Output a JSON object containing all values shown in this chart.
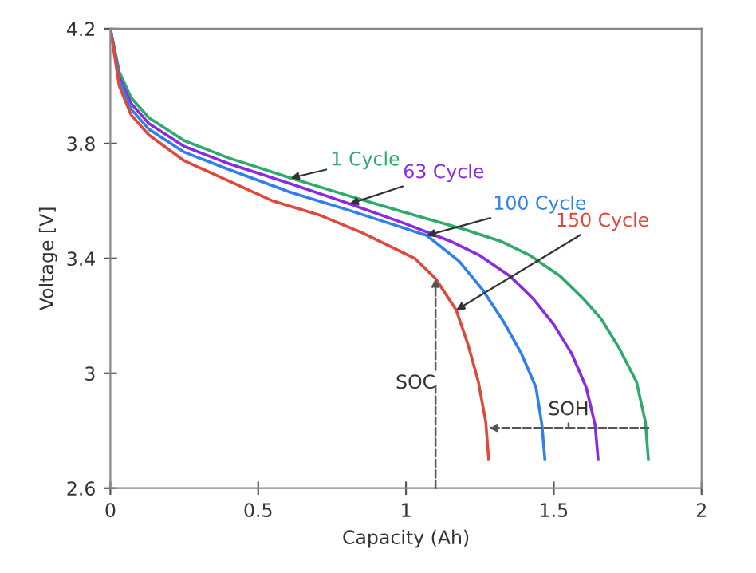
{
  "chart_data": {
    "type": "line",
    "xlabel": "Capacity (Ah)",
    "ylabel": "Voltage [V]",
    "xlim": [
      0,
      2
    ],
    "xticks": [
      0,
      0.5,
      1,
      1.5,
      2
    ],
    "ylim": [
      2.6,
      4.2
    ],
    "yticks": [
      2.6,
      3,
      3.4,
      3.8,
      4.2
    ],
    "grid": false,
    "marker": "none",
    "line_style": "solid",
    "series": [
      {
        "name": "1 Cycle",
        "color": "#2eaa6a",
        "x": [
          0,
          0.03,
          0.07,
          0.13,
          0.25,
          0.4,
          0.61,
          0.8,
          1.03,
          1.2,
          1.32,
          1.42,
          1.52,
          1.6,
          1.66,
          1.72,
          1.78,
          1.81,
          1.82
        ],
        "values": [
          4.2,
          4.05,
          3.96,
          3.89,
          3.81,
          3.75,
          3.68,
          3.62,
          3.55,
          3.5,
          3.46,
          3.41,
          3.34,
          3.26,
          3.19,
          3.09,
          2.97,
          2.83,
          2.7
        ]
      },
      {
        "name": "63 Cycle",
        "color": "#8a2be2",
        "x": [
          0,
          0.03,
          0.07,
          0.13,
          0.25,
          0.4,
          0.61,
          0.81,
          1.0,
          1.15,
          1.25,
          1.35,
          1.43,
          1.5,
          1.56,
          1.61,
          1.64,
          1.65
        ],
        "values": [
          4.2,
          4.03,
          3.94,
          3.87,
          3.79,
          3.73,
          3.66,
          3.59,
          3.52,
          3.46,
          3.41,
          3.34,
          3.26,
          3.17,
          3.07,
          2.95,
          2.82,
          2.7
        ]
      },
      {
        "name": "100 Cycle",
        "color": "#2f80ed",
        "x": [
          0,
          0.03,
          0.07,
          0.13,
          0.25,
          0.4,
          0.61,
          0.8,
          0.95,
          1.07,
          1.18,
          1.26,
          1.33,
          1.39,
          1.44,
          1.46,
          1.47
        ],
        "values": [
          4.2,
          4.02,
          3.92,
          3.85,
          3.77,
          3.71,
          3.63,
          3.57,
          3.52,
          3.48,
          3.39,
          3.29,
          3.18,
          3.07,
          2.95,
          2.82,
          2.7
        ]
      },
      {
        "name": "150 Cycle",
        "color": "#e0483a",
        "x": [
          0,
          0.03,
          0.07,
          0.13,
          0.25,
          0.4,
          0.55,
          0.71,
          0.85,
          0.95,
          1.03,
          1.1,
          1.17,
          1.21,
          1.245,
          1.27,
          1.28
        ],
        "values": [
          4.2,
          4.0,
          3.9,
          3.83,
          3.74,
          3.67,
          3.6,
          3.55,
          3.49,
          3.44,
          3.4,
          3.33,
          3.22,
          3.1,
          2.97,
          2.83,
          2.7
        ]
      }
    ],
    "annotations": [
      {
        "text": "SOC",
        "x": 1.1,
        "y": 3.33
      },
      {
        "text": "SOH",
        "x": 1.28,
        "y": 2.81
      }
    ]
  }
}
